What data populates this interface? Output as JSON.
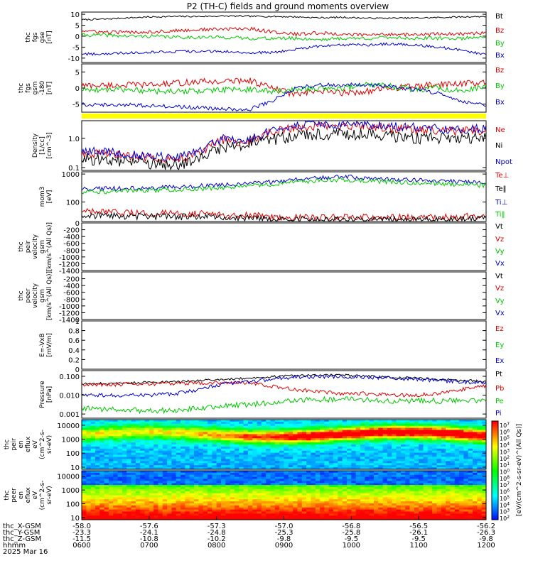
{
  "title": "P2 (TH-C) fields and ground moments overview",
  "colors": {
    "black": "#000000",
    "red": "#e00000",
    "green": "#00c800",
    "blue": "#0000d0",
    "yellow": "#ffff00"
  },
  "chart_data": [
    {
      "id": "fgs-gse",
      "type": "line",
      "ylabel": [
        "thc",
        "fgs",
        "gse",
        "[nT]"
      ],
      "ylim": [
        -12,
        11
      ],
      "yticks": [
        10,
        5,
        0,
        -5,
        -10
      ],
      "legend": [
        "Bt",
        "Bz",
        "By",
        "Bx"
      ],
      "series": [
        {
          "name": "Bt",
          "color": "black",
          "level": [
            7.5,
            7.8,
            8.4,
            8.8,
            9.0,
            9.0,
            9.2,
            9.1,
            9.0,
            8.8,
            8.4,
            8.6,
            8.2,
            8.2,
            8.3,
            8.5,
            8.8,
            9.0
          ],
          "noise": 0.35
        },
        {
          "name": "Bz",
          "color": "red",
          "level": [
            2.5,
            1.8,
            1.8,
            2.0,
            2.5,
            3.0,
            3.2,
            3.5,
            2.0,
            0.8,
            1.5,
            0.8,
            0.5,
            1.0,
            0.6,
            1.0,
            1.0,
            1.5
          ],
          "noise": 0.8
        },
        {
          "name": "By",
          "color": "green",
          "level": [
            0.5,
            0.5,
            0.0,
            0.0,
            -0.5,
            -0.5,
            -0.5,
            -1.0,
            -1.0,
            -1.0,
            -1.5,
            -1.0,
            -1.0,
            -0.5,
            -1.0,
            -1.0,
            -1.0,
            0.0
          ],
          "noise": 0.8
        },
        {
          "name": "Bx",
          "color": "blue",
          "level": [
            -8.2,
            -8.0,
            -7.5,
            -7.2,
            -7.0,
            -7.0,
            -7.0,
            -7.5,
            -7.5,
            -6.0,
            -4.5,
            -4.0,
            -4.0,
            -3.5,
            -4.0,
            -5.0,
            -6.5,
            -8.5
          ],
          "noise": 0.6
        }
      ]
    },
    {
      "id": "fgs-gsm",
      "type": "line",
      "ylabel": [
        "thc",
        "fgs",
        "gsm",
        "-180",
        "[nT]"
      ],
      "ylim": [
        -7.5,
        7.5
      ],
      "yticks": [
        5,
        0,
        -5
      ],
      "legend": [
        "Bz",
        "By",
        "Bx"
      ],
      "series": [
        {
          "name": "Bz",
          "color": "red",
          "level": [
            0.8,
            0.8,
            1.0,
            1.0,
            1.5,
            2.0,
            2.0,
            2.5,
            0.0,
            -2.0,
            -1.0,
            -1.5,
            -1.0,
            0.0,
            0.5,
            1.0,
            1.5,
            1.5
          ],
          "noise": 1.0
        },
        {
          "name": "By",
          "color": "green",
          "level": [
            -0.5,
            -0.5,
            -0.5,
            -1.0,
            -1.0,
            -1.0,
            -0.5,
            -0.5,
            -1.0,
            -0.5,
            0.0,
            0.0,
            1.0,
            0.5,
            -0.5,
            0.0,
            -1.0,
            0.5
          ],
          "noise": 0.9
        },
        {
          "name": "Bx",
          "color": "blue",
          "level": [
            -5.0,
            -5.2,
            -5.2,
            -5.5,
            -5.8,
            -6.2,
            -6.5,
            -6.8,
            -4.0,
            0.0,
            1.0,
            1.0,
            1.0,
            0.5,
            -0.5,
            -1.5,
            -4.0,
            -5.5
          ],
          "noise": 0.6
        }
      ]
    },
    {
      "id": "density",
      "type": "line",
      "yscale": "log",
      "ylabel": [
        "Density",
        "[1/cc]",
        "[cm^-3]"
      ],
      "ylim": [
        0.08,
        4.0
      ],
      "yticks": [
        1.0,
        0.1
      ],
      "yticklabels": [
        "1.0",
        "0.1"
      ],
      "legend": [
        "Ne",
        "Ni",
        "Npot"
      ],
      "series": [
        {
          "name": "Ne",
          "color": "red",
          "level": [
            0.3,
            0.3,
            0.25,
            0.22,
            0.2,
            0.3,
            0.9,
            0.7,
            1.6,
            2.4,
            2.6,
            2.4,
            2.6,
            2.2,
            2.0,
            1.8,
            1.8,
            1.9
          ],
          "noise": 0.15
        },
        {
          "name": "Ni",
          "color": "black",
          "level": [
            0.2,
            0.18,
            0.15,
            0.13,
            0.12,
            0.2,
            0.5,
            0.6,
            0.9,
            1.2,
            1.4,
            1.4,
            1.4,
            1.2,
            1.0,
            1.0,
            1.0,
            1.1
          ],
          "noise": 0.2
        },
        {
          "name": "Npot",
          "color": "blue",
          "level": [
            0.35,
            0.35,
            0.28,
            0.25,
            0.22,
            0.35,
            1.0,
            0.8,
            1.8,
            2.8,
            3.0,
            2.8,
            2.9,
            2.6,
            2.4,
            2.1,
            2.0,
            2.2
          ],
          "noise": 0.15
        }
      ]
    },
    {
      "id": "temperature",
      "type": "line",
      "yscale": "log",
      "ylabel": [
        "mom3",
        "[eV]"
      ],
      "ylim": [
        20,
        1200
      ],
      "yticks": [
        1000,
        100
      ],
      "yticklabels": [
        "1000",
        "100"
      ],
      "legend": [
        "Te⊥",
        "Te‖",
        "Ti⊥",
        "Ti‖"
      ],
      "series": [
        {
          "name": "Te⊥",
          "color": "red",
          "level": [
            45,
            42,
            40,
            40,
            38,
            38,
            35,
            33,
            30,
            28,
            28,
            28,
            28,
            28,
            28,
            28,
            30,
            32
          ],
          "noise": 0.12
        },
        {
          "name": "Te‖",
          "color": "black",
          "level": [
            35,
            32,
            30,
            30,
            29,
            30,
            28,
            26,
            24,
            23,
            23,
            23,
            23,
            23,
            23,
            23,
            24,
            25
          ],
          "noise": 0.12
        },
        {
          "name": "Ti⊥",
          "color": "blue",
          "level": [
            280,
            300,
            310,
            320,
            340,
            380,
            400,
            450,
            520,
            650,
            750,
            800,
            720,
            650,
            600,
            560,
            520,
            480
          ],
          "noise": 0.08
        },
        {
          "name": "Ti‖",
          "color": "green",
          "level": [
            220,
            230,
            250,
            260,
            280,
            300,
            330,
            360,
            430,
            520,
            580,
            620,
            580,
            520,
            480,
            450,
            420,
            390
          ],
          "noise": 0.08
        }
      ]
    },
    {
      "id": "peir-velocity",
      "type": "line",
      "empty": true,
      "ylabel": [
        "thc",
        "peir",
        "velocity",
        "gsm",
        "[km/s^(All Qs)]"
      ],
      "ylim": [
        -1400,
        0
      ],
      "yticks": [
        0,
        -200,
        -400,
        -600,
        -800,
        -1000,
        -1200,
        -1400
      ],
      "legend": [
        "Vt",
        "Vz",
        "Vy",
        "Vx"
      ],
      "series": []
    },
    {
      "id": "peer-velocity",
      "type": "line",
      "empty": true,
      "ylabel": [
        "thc",
        "peer",
        "velocity",
        "gsm",
        "[km/s^(All Qs)]"
      ],
      "ylim": [
        -1400,
        0
      ],
      "yticks": [
        -200,
        -400,
        -600,
        -800,
        -1000,
        -1200,
        -1400
      ],
      "legend": [
        "Vt",
        "Vz",
        "Vy",
        "Vx"
      ],
      "series": []
    },
    {
      "id": "efield",
      "type": "line",
      "empty": true,
      "ylabel": [
        "E=-VxB",
        "[mV/m]"
      ],
      "ylim": [
        0.0,
        1.0
      ],
      "yticks": [
        1.0,
        0.8,
        0.6,
        0.4,
        0.2,
        0.0
      ],
      "legend": [
        "Ez",
        "Ey",
        "Ex"
      ],
      "series": []
    },
    {
      "id": "pressure",
      "type": "line",
      "yscale": "log",
      "ylabel": [
        "Pressure",
        "[nPa]"
      ],
      "ylim": [
        0.0006,
        0.2
      ],
      "yticks": [
        0.1,
        0.01,
        0.001
      ],
      "yticklabels": [
        "0.100",
        "0.010",
        "0.001"
      ],
      "legend": [
        "Pt",
        "Pb",
        "Pe",
        "Pi"
      ],
      "series": [
        {
          "name": "Pt",
          "color": "black",
          "level": [
            0.04,
            0.042,
            0.045,
            0.048,
            0.05,
            0.06,
            0.07,
            0.08,
            0.095,
            0.11,
            0.115,
            0.115,
            0.1,
            0.09,
            0.08,
            0.07,
            0.06,
            0.055
          ],
          "noise": 0.06
        },
        {
          "name": "Pb",
          "color": "red",
          "level": [
            0.035,
            0.036,
            0.038,
            0.04,
            0.042,
            0.044,
            0.045,
            0.045,
            0.03,
            0.02,
            0.015,
            0.012,
            0.012,
            0.01,
            0.01,
            0.012,
            0.02,
            0.03
          ],
          "noise": 0.1
        },
        {
          "name": "Pe",
          "color": "green",
          "level": [
            0.002,
            0.0018,
            0.0016,
            0.0015,
            0.0015,
            0.002,
            0.003,
            0.003,
            0.004,
            0.005,
            0.006,
            0.006,
            0.006,
            0.005,
            0.005,
            0.005,
            0.005,
            0.005
          ],
          "noise": 0.15
        },
        {
          "name": "Pi",
          "color": "blue",
          "level": [
            0.01,
            0.01,
            0.01,
            0.01,
            0.012,
            0.02,
            0.04,
            0.05,
            0.07,
            0.09,
            0.095,
            0.095,
            0.09,
            0.08,
            0.07,
            0.06,
            0.05,
            0.045
          ],
          "noise": 0.1
        }
      ]
    },
    {
      "id": "peir-spectrogram",
      "type": "heatmap",
      "yscale": "log",
      "ylabel": [
        "thc",
        "peir",
        "en",
        "eflux",
        "eV",
        "(cm^2-s-",
        "sr-eV)"
      ],
      "ylim": [
        7,
        25000
      ],
      "yticks": [
        10000,
        1000,
        100,
        10
      ],
      "yticklabels": [
        "10000",
        "1000",
        "100",
        "10"
      ]
    },
    {
      "id": "peer-spectrogram",
      "type": "heatmap",
      "yscale": "log",
      "ylabel": [
        "thc",
        "peer",
        "en",
        "eflux",
        "eV",
        "(cm^2-s-",
        "sr-eV)"
      ],
      "ylim": [
        7,
        25000
      ],
      "yticks": [
        10000,
        1000,
        100,
        10
      ],
      "yticklabels": [
        "10000",
        "1000",
        "100",
        "10"
      ]
    }
  ],
  "colorbar": {
    "labels": [
      "10^7",
      "10^6",
      "10^5",
      "10^4",
      "10^3",
      "10^2",
      "10^1",
      "10^0",
      "10^8",
      "10^7",
      "10^6",
      "10^5",
      "10^4",
      "10^3",
      "10^2"
    ],
    "title": "[eV/(cm^2-s-sr-eV)^(All Qs)]"
  },
  "x_axis": {
    "ticks": [
      "0600",
      "0700",
      "0800",
      "0900",
      "1000",
      "1100",
      "1200"
    ],
    "row_labels": [
      "thc_X-GSM",
      "thc_Y-GSM",
      "thc_Z-GSM",
      "hhmm",
      "2025 Mar 16"
    ],
    "x_gsm": [
      "-58.0",
      "-57.6",
      "-57.3",
      "-57.0",
      "-56.8",
      "-56.5",
      "-56.2"
    ],
    "y_gsm": [
      "-23.3",
      "-24.1",
      "-24.8",
      "-25.3",
      "-25.8",
      "-26.1",
      "-26.3"
    ],
    "z_gsm": [
      "-11.5",
      "-10.8",
      "-10.2",
      "-9.8",
      "-9.5",
      "-9.5",
      "-9.8"
    ]
  }
}
